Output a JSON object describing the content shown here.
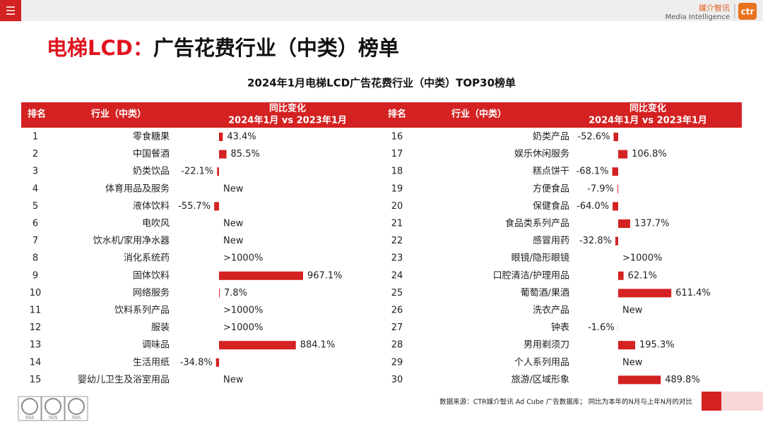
{
  "header": {
    "logo_cn": "媒介智讯",
    "logo_en": "Media Intelligence",
    "logo_mark": "ctr"
  },
  "title": {
    "highlight": "电梯LCD：",
    "rest": "广告花费行业（中类）榜单"
  },
  "subtitle": "2024年1月电梯LCD广告花费行业（中类）TOP30榜单",
  "table": {
    "columns": {
      "rank": "排名",
      "industry": "行业（中类）",
      "change": "同比变化",
      "change_period": "2024年1月 vs 2023年1月"
    },
    "rows": [
      {
        "rank": 1,
        "industry": "零食糖果",
        "change": 43.4,
        "change_label": "43.4%"
      },
      {
        "rank": 2,
        "industry": "中国餐酒",
        "change": 85.5,
        "change_label": "85.5%"
      },
      {
        "rank": 3,
        "industry": "奶类饮品",
        "change": -22.1,
        "change_label": "-22.1%"
      },
      {
        "rank": 4,
        "industry": "体育用品及服务",
        "change": null,
        "change_label": "New"
      },
      {
        "rank": 5,
        "industry": "液体饮料",
        "change": -55.7,
        "change_label": "-55.7%"
      },
      {
        "rank": 6,
        "industry": "电吹风",
        "change": null,
        "change_label": "New"
      },
      {
        "rank": 7,
        "industry": "饮水机/家用净水器",
        "change": null,
        "change_label": "New"
      },
      {
        "rank": 8,
        "industry": "消化系统药",
        "change": null,
        "change_label": ">1000%"
      },
      {
        "rank": 9,
        "industry": "固体饮料",
        "change": 967.1,
        "change_label": "967.1%"
      },
      {
        "rank": 10,
        "industry": "网络服务",
        "change": 7.8,
        "change_label": "7.8%"
      },
      {
        "rank": 11,
        "industry": "饮料系列产品",
        "change": null,
        "change_label": ">1000%"
      },
      {
        "rank": 12,
        "industry": "服装",
        "change": null,
        "change_label": ">1000%"
      },
      {
        "rank": 13,
        "industry": "调味品",
        "change": 884.1,
        "change_label": "884.1%"
      },
      {
        "rank": 14,
        "industry": "生活用纸",
        "change": -34.8,
        "change_label": "-34.8%"
      },
      {
        "rank": 15,
        "industry": "婴幼儿卫生及浴室用品",
        "change": null,
        "change_label": "New"
      },
      {
        "rank": 16,
        "industry": "奶类产品",
        "change": -52.6,
        "change_label": "-52.6%"
      },
      {
        "rank": 17,
        "industry": "娱乐休闲服务",
        "change": 106.8,
        "change_label": "106.8%"
      },
      {
        "rank": 18,
        "industry": "糕点饼干",
        "change": -68.1,
        "change_label": "-68.1%"
      },
      {
        "rank": 19,
        "industry": "方便食品",
        "change": -7.9,
        "change_label": "-7.9%"
      },
      {
        "rank": 20,
        "industry": "保健食品",
        "change": -64.0,
        "change_label": "-64.0%"
      },
      {
        "rank": 21,
        "industry": "食品类系列产品",
        "change": 137.7,
        "change_label": "137.7%"
      },
      {
        "rank": 22,
        "industry": "感冒用药",
        "change": -32.8,
        "change_label": "-32.8%"
      },
      {
        "rank": 23,
        "industry": "眼镜/隐形眼镜",
        "change": null,
        "change_label": ">1000%"
      },
      {
        "rank": 24,
        "industry": "口腔清洁/护理用品",
        "change": 62.1,
        "change_label": "62.1%"
      },
      {
        "rank": 25,
        "industry": "葡萄酒/果酒",
        "change": 611.4,
        "change_label": "611.4%"
      },
      {
        "rank": 26,
        "industry": "洗衣产品",
        "change": null,
        "change_label": "New"
      },
      {
        "rank": 27,
        "industry": "钟表",
        "change": -1.6,
        "change_label": "-1.6%"
      },
      {
        "rank": 28,
        "industry": "男用剃须刀",
        "change": 195.3,
        "change_label": "195.3%"
      },
      {
        "rank": 29,
        "industry": "个人系列用品",
        "change": null,
        "change_label": "New"
      },
      {
        "rank": 30,
        "industry": "旅游/区域形象",
        "change": 489.8,
        "change_label": "489.8%"
      }
    ]
  },
  "footer": {
    "source": "数据来源：CTR媒介智讯 Ad Cube 广告数据库；  同比为本年的N月与上年N月的对比",
    "certs": [
      "SGS",
      "SGS",
      "SGS"
    ]
  }
}
